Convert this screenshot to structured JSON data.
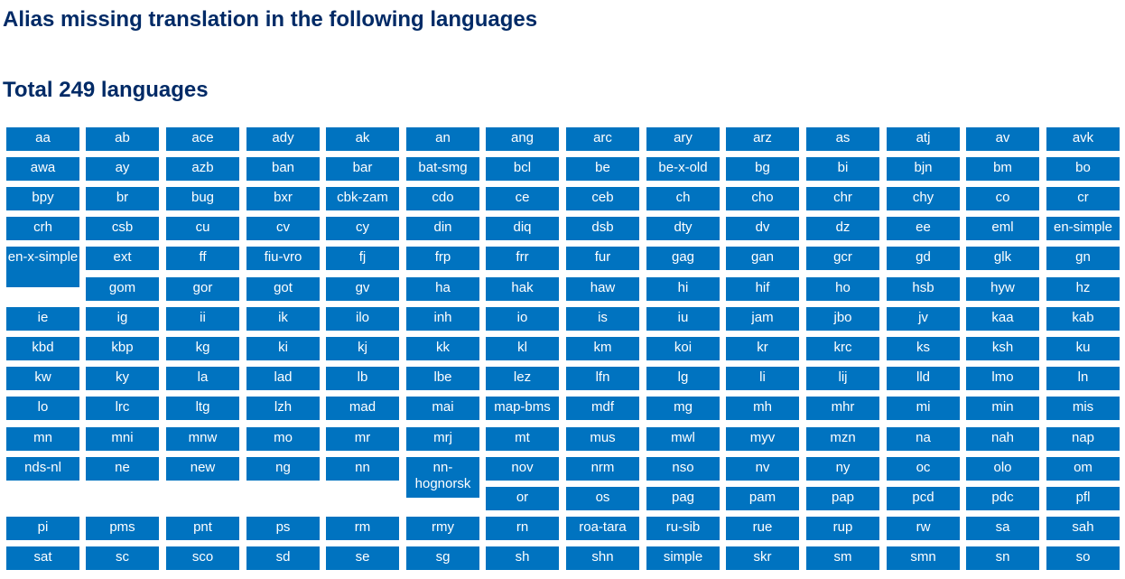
{
  "page": {
    "title": "Alias missing translation in the following languages",
    "total": "Total 249 languages"
  },
  "colors": {
    "heading": "#002a66",
    "button_bg": "#0073c0",
    "button_text": "#ffffff"
  },
  "languages": [
    [
      "aa",
      "ab",
      "ace",
      "ady",
      "ak",
      "an",
      "ang",
      "arc",
      "ary",
      "arz",
      "as",
      "atj",
      "av",
      "avk"
    ],
    [
      "awa",
      "ay",
      "azb",
      "ban",
      "bar",
      "bat-smg",
      "bcl",
      "be",
      "be-x-old",
      "bg",
      "bi",
      "bjn",
      "bm",
      "bo"
    ],
    [
      "bpy",
      "br",
      "bug",
      "bxr",
      "cbk-zam",
      "cdo",
      "ce",
      "ceb",
      "ch",
      "cho",
      "chr",
      "chy",
      "co",
      "cr"
    ],
    [
      "crh",
      "csb",
      "cu",
      "cv",
      "cy",
      "din",
      "diq",
      "dsb",
      "dty",
      "dv",
      "dz",
      "ee",
      "eml",
      "en-simple"
    ],
    [
      "en-x-simple",
      "ext",
      "ff",
      "fiu-vro",
      "fj",
      "frp",
      "frr",
      "fur",
      "gag",
      "gan",
      "gcr",
      "gd",
      "glk",
      "gn"
    ],
    [
      "gom",
      "gor",
      "got",
      "gv",
      "ha",
      "hak",
      "haw",
      "hi",
      "hif",
      "ho",
      "hsb",
      "hyw",
      "hz"
    ],
    [
      "ie",
      "ig",
      "ii",
      "ik",
      "ilo",
      "inh",
      "io",
      "is",
      "iu",
      "jam",
      "jbo",
      "jv",
      "kaa",
      "kab"
    ],
    [
      "kbd",
      "kbp",
      "kg",
      "ki",
      "kj",
      "kk",
      "kl",
      "km",
      "koi",
      "kr",
      "krc",
      "ks",
      "ksh",
      "ku"
    ],
    [
      "kw",
      "ky",
      "la",
      "lad",
      "lb",
      "lbe",
      "lez",
      "lfn",
      "lg",
      "li",
      "lij",
      "lld",
      "lmo",
      "ln"
    ],
    [
      "lo",
      "lrc",
      "ltg",
      "lzh",
      "mad",
      "mai",
      "map-bms",
      "mdf",
      "mg",
      "mh",
      "mhr",
      "mi",
      "min",
      "mis"
    ],
    [
      "mn",
      "mni",
      "mnw",
      "mo",
      "mr",
      "mrj",
      "mt",
      "mus",
      "mwl",
      "myv",
      "mzn",
      "na",
      "nah",
      "nap"
    ],
    [
      "nds-nl",
      "ne",
      "new",
      "ng",
      "nn",
      "nn-hognorsk",
      "nov",
      "nrm",
      "nso",
      "nv",
      "ny",
      "oc",
      "olo",
      "om"
    ],
    [
      "or",
      "os",
      "pag",
      "pam",
      "pap",
      "pcd",
      "pdc",
      "pfl"
    ],
    [
      "pi",
      "pms",
      "pnt",
      "ps",
      "rm",
      "rmy",
      "rn",
      "roa-tara",
      "ru-sib",
      "rue",
      "rup",
      "rw",
      "sa",
      "sah"
    ],
    [
      "sat",
      "sc",
      "sco",
      "sd",
      "se",
      "sg",
      "sh",
      "shn",
      "simple",
      "skr",
      "sm",
      "smn",
      "sn",
      "so"
    ]
  ]
}
